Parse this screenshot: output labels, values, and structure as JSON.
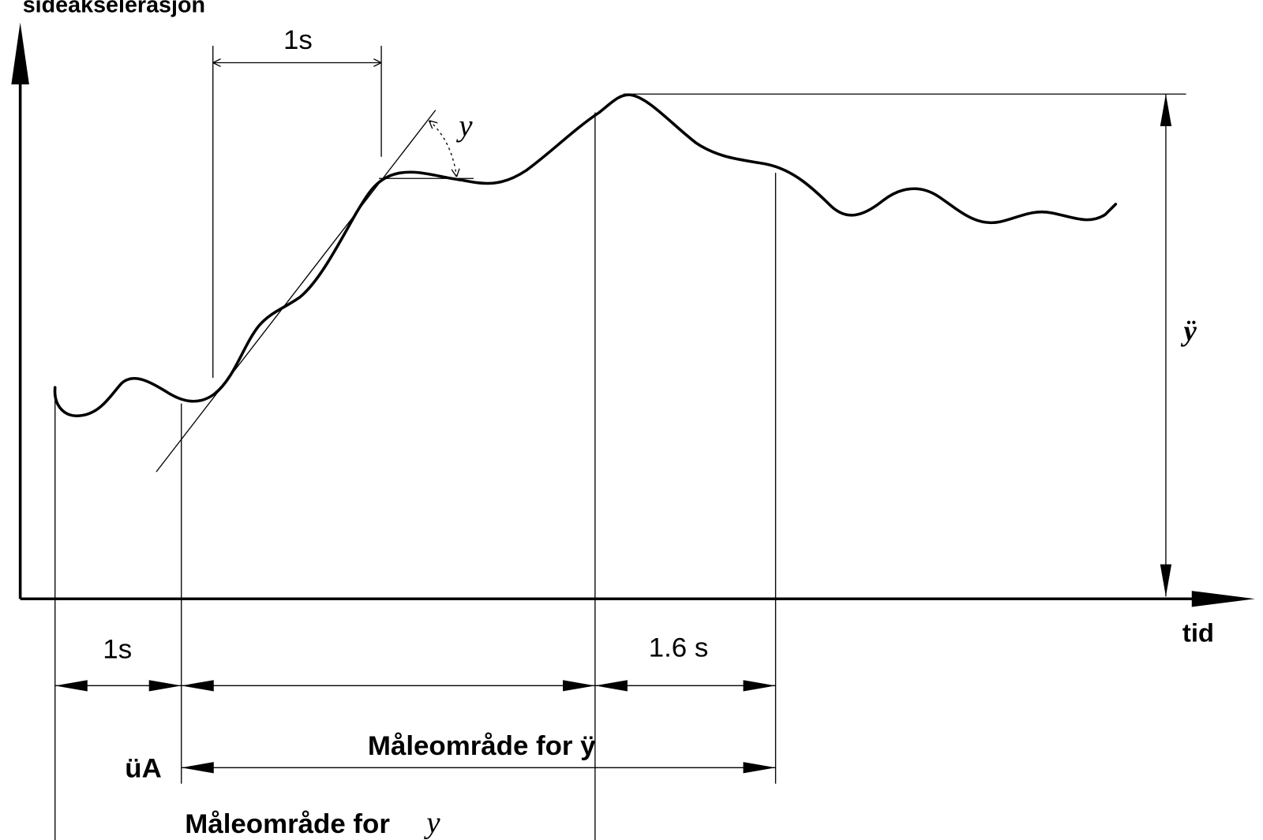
{
  "axes": {
    "y_label": "sideakselerasjon",
    "x_label": "tid"
  },
  "dimensions": {
    "top_interval": "1s",
    "tangent_symbol": "y⃛",
    "peak_symbol": "ÿ",
    "left_interval": "1s",
    "right_interval": "1.6 s"
  },
  "ranges": {
    "range_y": "Måleområde for ÿ",
    "start_label": "üA",
    "range_jerk": "Måleområde for",
    "jerk_symbol": "y⃛"
  }
}
